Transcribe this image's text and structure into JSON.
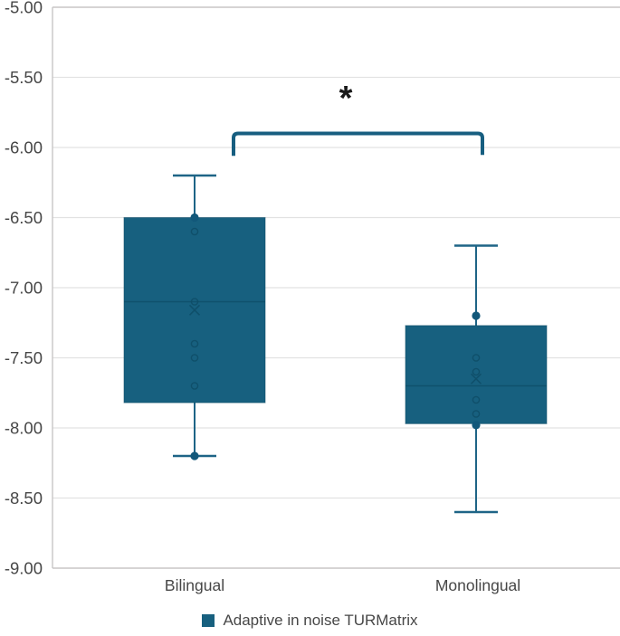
{
  "chart_data": {
    "type": "box",
    "title": "",
    "categories": [
      "Bilingual",
      "Monolingual"
    ],
    "series": [
      {
        "name": "Adaptive in noise TURMatrix"
      }
    ],
    "ylim": [
      -9.0,
      -5.0
    ],
    "ytick_step": 0.5,
    "ytick_labels": [
      "-5.00",
      "-5.50",
      "-6.00",
      "-6.50",
      "-7.00",
      "-7.50",
      "-8.00",
      "-8.50",
      "-9.00"
    ],
    "grid": true,
    "legend_position": "bottom",
    "boxes": [
      {
        "category": "Bilingual",
        "whisker_low": -8.2,
        "q1": -7.82,
        "median": -7.1,
        "q3": -6.5,
        "whisker_high": -6.2,
        "mean": -7.16,
        "open_points": [
          -6.6,
          -7.1,
          -7.4,
          -7.5,
          -7.7
        ],
        "filled_points": [
          -6.5,
          -8.2
        ]
      },
      {
        "category": "Monolingual",
        "whisker_low": -8.6,
        "q1": -7.97,
        "median": -7.7,
        "q3": -7.27,
        "whisker_high": -6.7,
        "mean": -7.65,
        "open_points": [
          -7.5,
          -7.6,
          -7.8,
          -7.9
        ],
        "filled_points": [
          -7.2,
          -7.98
        ]
      }
    ],
    "annotation": {
      "label": "*",
      "between": [
        "Bilingual",
        "Monolingual"
      ],
      "bracket_top_value": -5.9,
      "bracket_end_value": -6.06
    },
    "colors": {
      "box_fill": "#17607F",
      "line": "#1E6486",
      "dark": "#0E4C66",
      "dot": "#12587A",
      "bracket": "#175E80",
      "grid": "#E2E2E2",
      "axis": "#C8C6C6",
      "text": "#474747",
      "asterisk": "#1A1A1A"
    }
  }
}
